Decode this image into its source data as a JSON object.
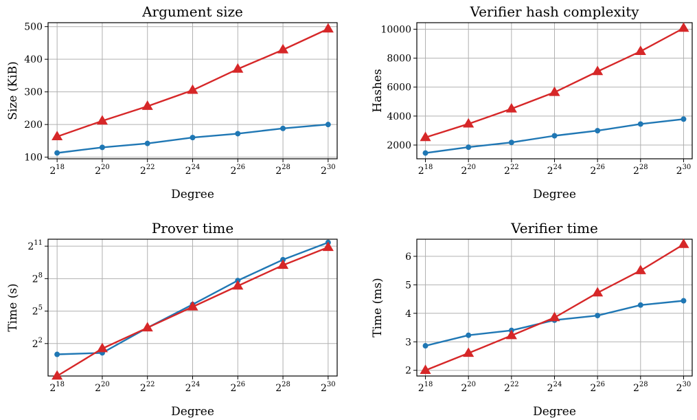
{
  "colors": {
    "blue": "#1f77b4",
    "red": "#d62728",
    "grid": "#b0b0b0"
  },
  "chart_data": [
    {
      "type": "line",
      "title": "Argument size",
      "xlabel": "Degree",
      "ylabel": "Size (KiB)",
      "x_scale": "log2",
      "x": [
        18,
        20,
        22,
        24,
        26,
        28,
        30
      ],
      "x_tick_labels": [
        {
          "base": "2",
          "exp": "18"
        },
        {
          "base": "2",
          "exp": "20"
        },
        {
          "base": "2",
          "exp": "22"
        },
        {
          "base": "2",
          "exp": "24"
        },
        {
          "base": "2",
          "exp": "26"
        },
        {
          "base": "2",
          "exp": "28"
        },
        {
          "base": "2",
          "exp": "30"
        }
      ],
      "ylim": [
        95,
        512
      ],
      "y_ticks": [
        100,
        200,
        300,
        400,
        500
      ],
      "y_tick_labels": [
        {
          "base": "100",
          "exp": ""
        },
        {
          "base": "200",
          "exp": ""
        },
        {
          "base": "300",
          "exp": ""
        },
        {
          "base": "400",
          "exp": ""
        },
        {
          "base": "500",
          "exp": ""
        }
      ],
      "grid": true,
      "series": [
        {
          "color": "blue",
          "marker": "circle",
          "values": [
            113,
            130,
            142,
            160,
            172,
            188,
            200
          ]
        },
        {
          "color": "red",
          "marker": "triangle",
          "values": [
            163,
            211,
            256,
            305,
            370,
            429,
            493
          ]
        }
      ]
    },
    {
      "type": "line",
      "title": "Verifier hash complexity",
      "xlabel": "Degree",
      "ylabel": "Hashes",
      "x_scale": "log2",
      "x": [
        18,
        20,
        22,
        24,
        26,
        28,
        30
      ],
      "x_tick_labels": [
        {
          "base": "2",
          "exp": "18"
        },
        {
          "base": "2",
          "exp": "20"
        },
        {
          "base": "2",
          "exp": "22"
        },
        {
          "base": "2",
          "exp": "24"
        },
        {
          "base": "2",
          "exp": "26"
        },
        {
          "base": "2",
          "exp": "28"
        },
        {
          "base": "2",
          "exp": "30"
        }
      ],
      "ylim": [
        1050,
        10450
      ],
      "y_ticks": [
        2000,
        4000,
        6000,
        8000,
        10000
      ],
      "y_tick_labels": [
        {
          "base": "2000",
          "exp": ""
        },
        {
          "base": "4000",
          "exp": ""
        },
        {
          "base": "6000",
          "exp": ""
        },
        {
          "base": "8000",
          "exp": ""
        },
        {
          "base": "10000",
          "exp": ""
        }
      ],
      "grid": true,
      "series": [
        {
          "color": "blue",
          "marker": "circle",
          "values": [
            1450,
            1850,
            2180,
            2640,
            2990,
            3450,
            3790
          ]
        },
        {
          "color": "red",
          "marker": "triangle",
          "values": [
            2520,
            3460,
            4500,
            5640,
            7080,
            8470,
            10070
          ]
        }
      ]
    },
    {
      "type": "line",
      "title": "Prover time",
      "xlabel": "Degree",
      "ylabel": "Time (s)",
      "x_scale": "log2",
      "y_scale": "log2",
      "x": [
        18,
        20,
        22,
        24,
        26,
        28,
        30
      ],
      "x_tick_labels": [
        {
          "base": "2",
          "exp": "18"
        },
        {
          "base": "2",
          "exp": "20"
        },
        {
          "base": "2",
          "exp": "22"
        },
        {
          "base": "2",
          "exp": "24"
        },
        {
          "base": "2",
          "exp": "26"
        },
        {
          "base": "2",
          "exp": "28"
        },
        {
          "base": "2",
          "exp": "30"
        }
      ],
      "ylim": [
        0.5,
        3200
      ],
      "y_ticks": [
        4,
        32,
        256,
        2048
      ],
      "y_tick_labels": [
        {
          "base": "2",
          "exp": "2"
        },
        {
          "base": "2",
          "exp": "5"
        },
        {
          "base": "2",
          "exp": "8"
        },
        {
          "base": "2",
          "exp": "11"
        }
      ],
      "grid": true,
      "series": [
        {
          "color": "blue",
          "marker": "circle",
          "values": [
            2.0,
            2.2,
            11,
            49,
            227,
            861,
            2600
          ]
        },
        {
          "color": "red",
          "marker": "triangle",
          "values": [
            0.5,
            2.9,
            11,
            42,
            160,
            605,
            1900
          ]
        }
      ]
    },
    {
      "type": "line",
      "title": "Verifier time",
      "xlabel": "Degree",
      "ylabel": "Time (ms)",
      "x_scale": "log2",
      "x": [
        18,
        20,
        22,
        24,
        26,
        28,
        30
      ],
      "x_tick_labels": [
        {
          "base": "2",
          "exp": "18"
        },
        {
          "base": "2",
          "exp": "20"
        },
        {
          "base": "2",
          "exp": "22"
        },
        {
          "base": "2",
          "exp": "24"
        },
        {
          "base": "2",
          "exp": "26"
        },
        {
          "base": "2",
          "exp": "28"
        },
        {
          "base": "2",
          "exp": "30"
        }
      ],
      "ylim": [
        1.8,
        6.6
      ],
      "y_ticks": [
        2,
        3,
        4,
        5,
        6
      ],
      "y_tick_labels": [
        {
          "base": "2",
          "exp": ""
        },
        {
          "base": "3",
          "exp": ""
        },
        {
          "base": "4",
          "exp": ""
        },
        {
          "base": "5",
          "exp": ""
        },
        {
          "base": "6",
          "exp": ""
        }
      ],
      "grid": true,
      "series": [
        {
          "color": "blue",
          "marker": "circle",
          "values": [
            2.86,
            3.23,
            3.4,
            3.76,
            3.92,
            4.29,
            4.44
          ]
        },
        {
          "color": "red",
          "marker": "triangle",
          "values": [
            2.0,
            2.6,
            3.22,
            3.85,
            4.72,
            5.5,
            6.42
          ]
        }
      ]
    }
  ]
}
